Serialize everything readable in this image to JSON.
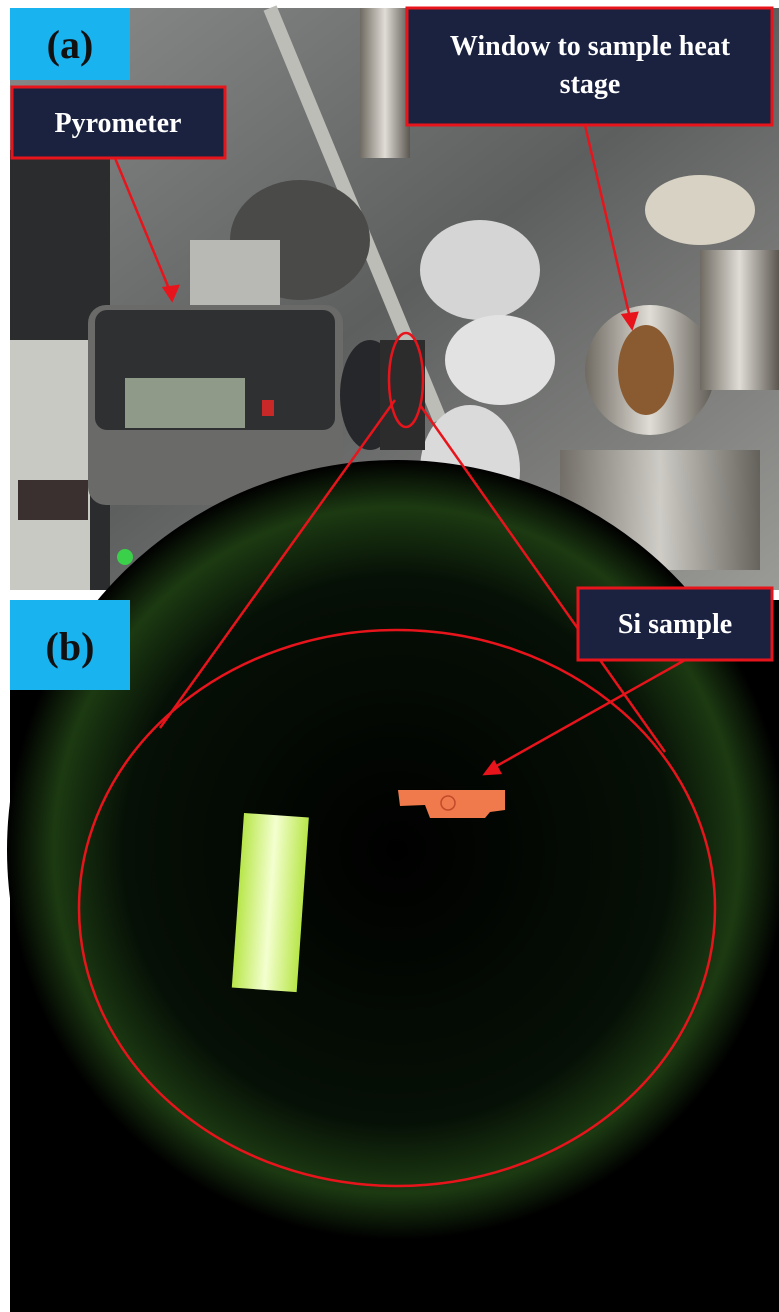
{
  "panels": [
    {
      "label": "(a)"
    },
    {
      "label": "(b)"
    }
  ],
  "callouts": [
    {
      "text": "Pyrometer"
    },
    {
      "text": "Window to sample heat stage"
    },
    {
      "text": "Si sample"
    }
  ]
}
